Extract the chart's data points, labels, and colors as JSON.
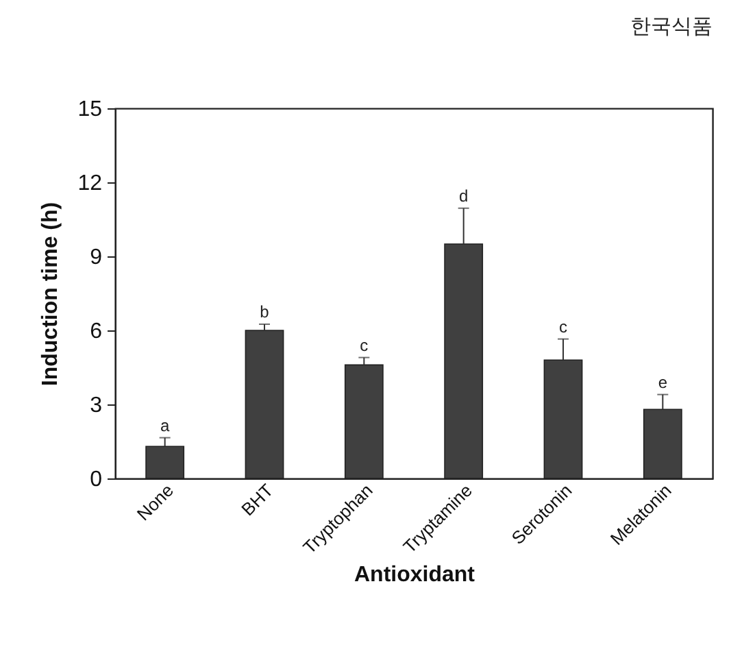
{
  "chart_data": {
    "type": "bar",
    "xlabel": "Antioxidant",
    "ylabel": "Induction time (h)",
    "categories": [
      "None",
      "BHT",
      "Tryptophan",
      "Tryptamine",
      "Serotonin",
      "Melatonin"
    ],
    "values": [
      1.3,
      6.0,
      4.6,
      9.5,
      4.8,
      2.8
    ],
    "errors": [
      [
        1.3,
        1.65
      ],
      [
        6.0,
        6.25
      ],
      [
        4.6,
        4.9
      ],
      [
        9.5,
        10.95
      ],
      [
        4.8,
        5.65
      ],
      [
        2.8,
        3.4
      ]
    ],
    "color": "#404040",
    "ylim": [
      0,
      15
    ],
    "yticks": [
      0,
      3,
      6,
      9,
      12,
      15
    ],
    "grid": false,
    "annotations": [
      "한국식품",
      {
        "text": "a",
        "x": "None",
        "y": 1.65
      },
      {
        "text": "b",
        "x": "BHT",
        "y": 6.25
      },
      {
        "text": "c",
        "x": "Tryptophan",
        "y": 4.9
      },
      {
        "text": "d",
        "x": "Tryptamine",
        "y": 10.95
      },
      {
        "text": "c",
        "x": "Serotonin",
        "y": 5.65
      },
      {
        "text": "e",
        "x": "Melatonin",
        "y": 3.4
      }
    ]
  }
}
